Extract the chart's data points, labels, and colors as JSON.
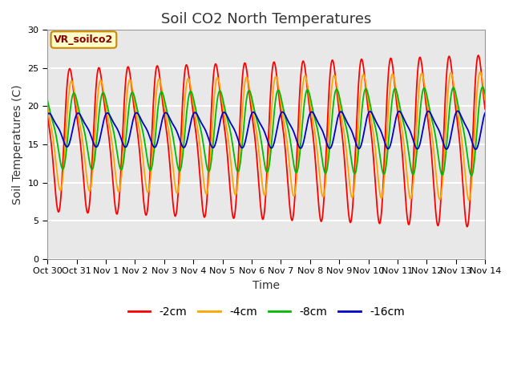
{
  "title": "Soil CO2 North Temperatures",
  "ylabel": "Soil Temperatures (C)",
  "xlabel": "Time",
  "legend_label": "VR_soilco2",
  "ylim": [
    0,
    30
  ],
  "yticks": [
    0,
    5,
    10,
    15,
    20,
    25,
    30
  ],
  "bg_color": "#e8e8e8",
  "fig_color": "#ffffff",
  "series_order": [
    "-2cm",
    "-4cm",
    "-8cm",
    "-16cm"
  ],
  "series": {
    "-2cm": {
      "color": "#ff0000",
      "mean": 16.0,
      "amp": 8.5,
      "phase_hr": 14.0,
      "amp_growth": 1.8
    },
    "-4cm": {
      "color": "#ffa500",
      "mean": 16.5,
      "amp": 6.5,
      "phase_hr": 15.5,
      "amp_growth": 1.2
    },
    "-8cm": {
      "color": "#00bb00",
      "mean": 17.0,
      "amp": 4.5,
      "phase_hr": 17.5,
      "amp_growth": 0.8
    },
    "-16cm": {
      "color": "#0000cc",
      "mean": 17.0,
      "amp": 2.0,
      "phase_hr": 21.0,
      "amp_growth": 0.3
    }
  },
  "x_tick_labels": [
    "Oct 30",
    "Oct 31",
    "Nov 1",
    "Nov 2",
    "Nov 3",
    "Nov 4",
    "Nov 5",
    "Nov 6",
    "Nov 7",
    "Nov 8",
    "Nov 9",
    "Nov 10",
    "Nov 11",
    "Nov 12",
    "Nov 13",
    "Nov 14"
  ],
  "num_days": 15,
  "points_per_day": 144,
  "title_fontsize": 13,
  "axis_label_fontsize": 10,
  "tick_fontsize": 8,
  "legend_fontsize": 10,
  "line_width": 1.3,
  "grid_color": "#ffffff",
  "grid_linewidth": 1.5
}
